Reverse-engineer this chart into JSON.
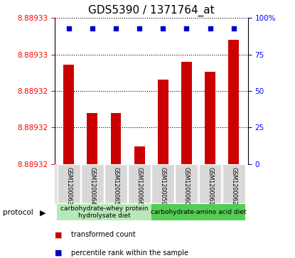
{
  "title": "GDS5390 / 1371764_at",
  "samples": [
    "GSM1200063",
    "GSM1200064",
    "GSM1200065",
    "GSM1200066",
    "GSM1200059",
    "GSM1200060",
    "GSM1200061",
    "GSM1200062"
  ],
  "bar_color": "#cc0000",
  "percentile_color": "#0000cc",
  "bar_heights_pct": [
    68,
    35,
    35,
    12,
    58,
    70,
    63,
    85
  ],
  "percentile_dots_pct": [
    93,
    93,
    93,
    93,
    93,
    93,
    93,
    93
  ],
  "ylim_right": [
    0,
    100
  ],
  "ytick_left_labels": [
    "8.88932",
    "8.88932",
    "8.88932",
    "8.88933",
    "8.88933"
  ],
  "ytick_right_labels": [
    "0",
    "25",
    "50",
    "75",
    "100%"
  ],
  "group1_label": "carbohydrate-whey protein\nhydrolysate diet",
  "group2_label": "carbohydrate-amino acid diet",
  "group1_color": "#b8e8b8",
  "group2_color": "#55cc55",
  "legend_bar_label": "transformed count",
  "legend_pct_label": "percentile rank within the sample",
  "protocol_label": "protocol",
  "title_fontsize": 11,
  "label_fontsize": 7,
  "tick_fontsize": 7.5
}
